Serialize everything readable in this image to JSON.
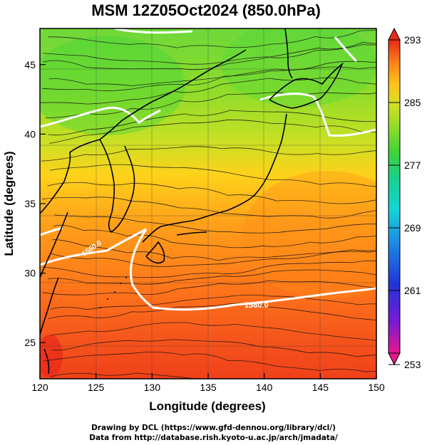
{
  "title": "MSM 12Z05Oct2024 (850.0hPa)",
  "map": {
    "xlabel": "Longitude (degrees)",
    "ylabel": "Latitude  (degrees)",
    "x_ticks": [
      "120",
      "125",
      "130",
      "135",
      "140",
      "145",
      "150"
    ],
    "y_ticks": [
      "25",
      "30",
      "35",
      "40",
      "45"
    ],
    "x_range": [
      120,
      150
    ],
    "y_range": [
      22.4,
      47.6
    ],
    "contour_label": "1560.0",
    "contour_label_2": "1560.0",
    "colormap": "temperature (K) shading with streamlines and white height contours"
  },
  "colorbar": {
    "ticks": [
      "293",
      "285",
      "277",
      "269",
      "261",
      "253"
    ],
    "range": [
      253,
      293
    ],
    "colors": [
      "#e8168c",
      "#7a1ad6",
      "#1f34d8",
      "#1b8fe6",
      "#12d6d6",
      "#18d08a",
      "#3ed43a",
      "#8fdc28",
      "#d8e020",
      "#ffc21a",
      "#ff8a1a",
      "#f5501c",
      "#e8281a"
    ]
  },
  "footer": {
    "line1": "Drawing by DCL (https://www.gfd-dennou.org/library/dcl/)",
    "line2": "Data from http://database.rish.kyoto-u.ac.jp/arch/jmadata/"
  }
}
